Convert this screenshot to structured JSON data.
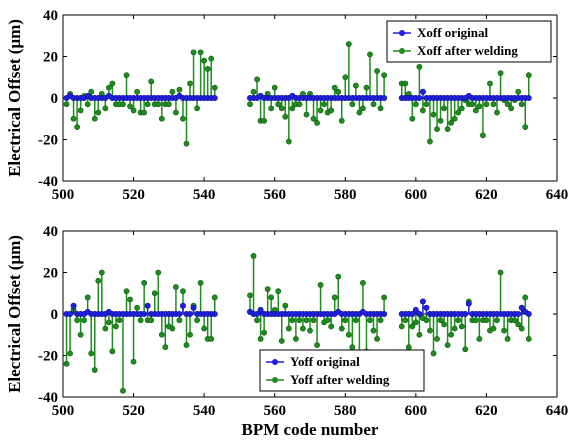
{
  "chart_data": [
    {
      "type": "stem",
      "ylabel": "Electrical Offset (μm)",
      "xlabel": "",
      "xlim": [
        500,
        640
      ],
      "ylim": [
        -40,
        40
      ],
      "xticks": [
        "500",
        "520",
        "540",
        "560",
        "580",
        "600",
        "620",
        "640"
      ],
      "yticks": [
        "-40",
        "-20",
        "0",
        "20",
        "40"
      ],
      "xtick_values": [
        500,
        520,
        540,
        560,
        580,
        600,
        620,
        640
      ],
      "ytick_values": [
        -40,
        -20,
        0,
        20,
        40
      ],
      "legend_position": "top-right",
      "colors": {
        "original": "#1f1fe0",
        "after": "#1f8c1f"
      },
      "series": [
        {
          "name": "Xoff original",
          "x": [
            501,
            502,
            503,
            504,
            505,
            506,
            507,
            508,
            509,
            510,
            511,
            512,
            513,
            514,
            515,
            516,
            517,
            518,
            519,
            520,
            521,
            522,
            523,
            524,
            525,
            526,
            527,
            528,
            529,
            530,
            531,
            532,
            533,
            534,
            535,
            536,
            537,
            538,
            539,
            540,
            541,
            542,
            543,
            553,
            554,
            555,
            556,
            557,
            558,
            559,
            560,
            561,
            562,
            563,
            564,
            565,
            566,
            567,
            568,
            569,
            570,
            571,
            572,
            573,
            574,
            575,
            576,
            577,
            578,
            579,
            580,
            581,
            582,
            583,
            584,
            585,
            586,
            587,
            588,
            589,
            590,
            591,
            596,
            597,
            598,
            599,
            600,
            601,
            602,
            603,
            604,
            605,
            606,
            607,
            608,
            609,
            610,
            611,
            612,
            613,
            614,
            615,
            616,
            617,
            618,
            619,
            620,
            621,
            622,
            623,
            624,
            625,
            626,
            627,
            628,
            629,
            630,
            631,
            632
          ],
          "values": [
            0,
            1,
            0,
            0,
            0,
            0,
            1,
            0,
            0,
            0,
            0,
            0,
            1,
            0,
            0,
            0,
            0,
            0,
            0,
            0,
            0,
            0,
            0,
            0,
            0,
            0,
            0,
            0,
            0,
            0,
            0,
            0,
            1,
            0,
            0,
            0,
            0,
            0,
            0,
            0,
            0,
            0,
            0,
            0,
            0,
            0,
            1,
            0,
            0,
            0,
            0,
            0,
            0,
            0,
            0,
            1,
            0,
            0,
            0,
            0,
            0,
            0,
            0,
            0,
            0,
            0,
            0,
            0,
            0,
            0,
            0,
            0,
            0,
            0,
            0,
            0,
            0,
            0,
            0,
            0,
            0,
            0,
            0,
            0,
            0,
            0,
            0,
            0,
            3,
            0,
            0,
            0,
            0,
            0,
            0,
            0,
            0,
            0,
            0,
            0,
            0,
            1,
            0,
            0,
            0,
            0,
            0,
            0,
            0,
            0,
            0,
            0,
            0,
            0,
            0,
            0,
            0,
            0,
            0
          ]
        },
        {
          "name": "Xoff after welding",
          "x": [
            501,
            502,
            503,
            504,
            505,
            506,
            507,
            508,
            509,
            510,
            511,
            512,
            513,
            514,
            515,
            516,
            517,
            518,
            519,
            520,
            521,
            522,
            523,
            524,
            525,
            526,
            527,
            528,
            529,
            530,
            531,
            532,
            533,
            534,
            535,
            536,
            537,
            538,
            539,
            540,
            541,
            542,
            543,
            553,
            554,
            555,
            556,
            557,
            558,
            559,
            560,
            561,
            562,
            563,
            564,
            565,
            566,
            567,
            568,
            569,
            570,
            571,
            572,
            573,
            574,
            575,
            576,
            577,
            578,
            579,
            580,
            581,
            582,
            583,
            584,
            585,
            586,
            587,
            588,
            589,
            590,
            591,
            596,
            597,
            598,
            599,
            600,
            601,
            602,
            603,
            604,
            605,
            606,
            607,
            608,
            609,
            610,
            611,
            612,
            613,
            614,
            615,
            616,
            617,
            618,
            619,
            620,
            621,
            622,
            623,
            624,
            625,
            626,
            627,
            628,
            629,
            630,
            631,
            632
          ],
          "values": [
            -3,
            2,
            -10,
            -14,
            -6,
            1,
            -3,
            3,
            -10,
            -7,
            2,
            -5,
            5,
            7,
            -3,
            -3,
            -3,
            11,
            -4,
            -6,
            3,
            -7,
            -7,
            -3,
            8,
            -3,
            -3,
            -10,
            -3,
            -3,
            3,
            -7,
            4,
            -10,
            -22,
            7,
            22,
            -5,
            22,
            18,
            14,
            19,
            5,
            -3,
            3,
            9,
            -11,
            -11,
            2,
            -5,
            5,
            -3,
            -5,
            -9,
            -21,
            -5,
            -3,
            -3,
            2,
            -8,
            2,
            -10,
            -12,
            -6,
            -3,
            -7,
            -6,
            5,
            3,
            -11,
            10,
            26,
            -3,
            6,
            -7,
            -5,
            5,
            21,
            -3,
            13,
            -5,
            11,
            7,
            7,
            2,
            -10,
            -3,
            15,
            -6,
            -3,
            -21,
            -8,
            -15,
            -11,
            -5,
            -15,
            -12,
            -10,
            -7,
            -5,
            -1,
            -3,
            -3,
            -6,
            -4,
            -18,
            -3,
            7,
            -3,
            -7,
            12,
            -1,
            -3,
            -5,
            -1,
            3,
            -3,
            -14,
            11
          ]
        }
      ]
    },
    {
      "type": "stem",
      "ylabel": "Electrical Offset (μm)",
      "xlabel": "BPM code number",
      "xlim": [
        500,
        640
      ],
      "ylim": [
        -40,
        40
      ],
      "xticks": [
        "500",
        "520",
        "540",
        "560",
        "580",
        "600",
        "620",
        "640"
      ],
      "yticks": [
        "-40",
        "-20",
        "0",
        "20",
        "40"
      ],
      "xtick_values": [
        500,
        520,
        540,
        560,
        580,
        600,
        620,
        640
      ],
      "ytick_values": [
        -40,
        -20,
        0,
        20,
        40
      ],
      "legend_position": "bottom-center",
      "colors": {
        "original": "#1f1fe0",
        "after": "#1f8c1f"
      },
      "series": [
        {
          "name": "Yoff original",
          "x": [
            501,
            502,
            503,
            504,
            505,
            506,
            507,
            508,
            509,
            510,
            511,
            512,
            513,
            514,
            515,
            516,
            517,
            518,
            519,
            520,
            521,
            522,
            523,
            524,
            525,
            526,
            527,
            528,
            529,
            530,
            531,
            532,
            533,
            534,
            535,
            536,
            537,
            538,
            539,
            540,
            541,
            542,
            543,
            553,
            554,
            555,
            556,
            557,
            558,
            559,
            560,
            561,
            562,
            563,
            564,
            565,
            566,
            567,
            568,
            569,
            570,
            571,
            572,
            573,
            574,
            575,
            576,
            577,
            578,
            579,
            580,
            581,
            582,
            583,
            584,
            585,
            586,
            587,
            588,
            589,
            590,
            591,
            596,
            597,
            598,
            599,
            600,
            601,
            602,
            603,
            604,
            605,
            606,
            607,
            608,
            609,
            610,
            611,
            612,
            613,
            614,
            615,
            616,
            617,
            618,
            619,
            620,
            621,
            622,
            623,
            624,
            625,
            626,
            627,
            628,
            629,
            630,
            631,
            632
          ],
          "values": [
            0,
            0,
            4,
            0,
            0,
            0,
            1,
            0,
            0,
            0,
            0,
            0,
            1,
            0,
            0,
            0,
            0,
            0,
            0,
            0,
            0,
            0,
            0,
            4,
            0,
            0,
            0,
            0,
            0,
            0,
            0,
            0,
            0,
            4,
            0,
            0,
            3,
            0,
            0,
            0,
            0,
            0,
            0,
            1,
            0,
            0,
            2,
            0,
            0,
            0,
            0,
            0,
            0,
            0,
            0,
            0,
            0,
            0,
            0,
            0,
            0,
            0,
            0,
            0,
            0,
            0,
            0,
            0,
            1,
            0,
            0,
            0,
            0,
            0,
            0,
            1,
            0,
            0,
            0,
            0,
            0,
            0,
            0,
            0,
            0,
            0,
            2,
            0,
            6,
            3,
            0,
            0,
            0,
            0,
            0,
            0,
            0,
            0,
            0,
            0,
            0,
            5,
            0,
            0,
            0,
            0,
            0,
            0,
            0,
            0,
            0,
            0,
            0,
            0,
            0,
            0,
            3,
            1,
            0
          ]
        },
        {
          "name": "Yoff after welding",
          "x": [
            501,
            502,
            503,
            504,
            505,
            506,
            507,
            508,
            509,
            510,
            511,
            512,
            513,
            514,
            515,
            516,
            517,
            518,
            519,
            520,
            521,
            522,
            523,
            524,
            525,
            526,
            527,
            528,
            529,
            530,
            531,
            532,
            533,
            534,
            535,
            536,
            537,
            538,
            539,
            540,
            541,
            542,
            543,
            553,
            554,
            555,
            556,
            557,
            558,
            559,
            560,
            561,
            562,
            563,
            564,
            565,
            566,
            567,
            568,
            569,
            570,
            571,
            572,
            573,
            574,
            575,
            576,
            577,
            578,
            579,
            580,
            581,
            582,
            583,
            584,
            585,
            586,
            587,
            588,
            589,
            590,
            591,
            596,
            597,
            598,
            599,
            600,
            601,
            602,
            603,
            604,
            605,
            606,
            607,
            608,
            609,
            610,
            611,
            612,
            613,
            614,
            615,
            616,
            617,
            618,
            619,
            620,
            621,
            622,
            623,
            624,
            625,
            626,
            627,
            628,
            629,
            630,
            631,
            632
          ],
          "values": [
            -24,
            -19,
            2,
            -3,
            -10,
            -3,
            8,
            -19,
            -27,
            16,
            20,
            -7,
            -4,
            -18,
            -6,
            -3,
            -37,
            11,
            7,
            -23,
            3,
            -3,
            15,
            -3,
            -3,
            10,
            20,
            -10,
            -16,
            -6,
            -7,
            13,
            -3,
            11,
            -15,
            -10,
            4,
            -3,
            15,
            -7,
            -12,
            -12,
            8,
            9,
            28,
            -3,
            -12,
            -9,
            12,
            8,
            2,
            11,
            -13,
            4,
            -7,
            -3,
            -12,
            -3,
            -7,
            -3,
            -8,
            -3,
            -15,
            14,
            -4,
            -3,
            -6,
            8,
            18,
            -7,
            -3,
            -10,
            -16,
            -3,
            -22,
            15,
            -18,
            -3,
            -8,
            -12,
            -3,
            8,
            -6,
            -3,
            -16,
            -6,
            -4,
            -10,
            -2,
            -3,
            -8,
            -19,
            -12,
            -3,
            -5,
            -15,
            -10,
            -7,
            -3,
            -6,
            -17,
            6,
            -3,
            -3,
            -12,
            -3,
            -3,
            -8,
            -7,
            -3,
            20,
            -8,
            -12,
            -3,
            -3,
            -5,
            -7,
            8,
            -12
          ]
        }
      ]
    }
  ]
}
